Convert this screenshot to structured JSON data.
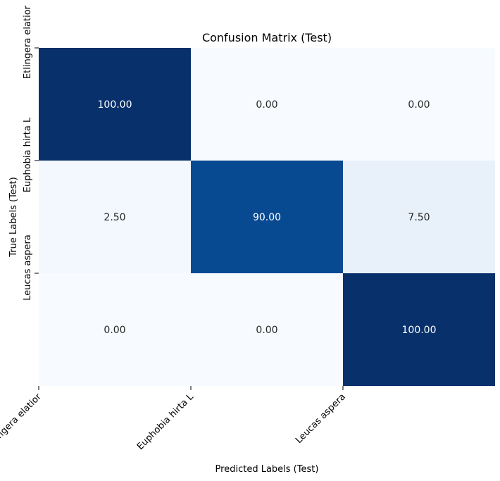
{
  "chart_data": {
    "type": "heatmap",
    "title": "Confusion Matrix (Test)",
    "xlabel": "Predicted Labels (Test)",
    "ylabel": "True Labels (Test)",
    "x_categories": [
      "Etlingera elatior",
      "Euphobia hirta L",
      "Leucas aspera"
    ],
    "y_categories": [
      "Etlingera elatior",
      "Euphobia hirta L",
      "Leucas aspera"
    ],
    "values": [
      [
        100.0,
        0.0,
        0.0
      ],
      [
        2.5,
        90.0,
        7.5
      ],
      [
        0.0,
        0.0,
        100.0
      ]
    ],
    "value_labels": [
      [
        "100.00",
        "0.00",
        "0.00"
      ],
      [
        "2.50",
        "90.00",
        "7.50"
      ],
      [
        "0.00",
        "0.00",
        "100.00"
      ]
    ],
    "colormap": "Blues",
    "color_low": "#f7fbff",
    "color_high": "#08306b",
    "vmin": 0,
    "vmax": 100,
    "colorbar": false
  }
}
